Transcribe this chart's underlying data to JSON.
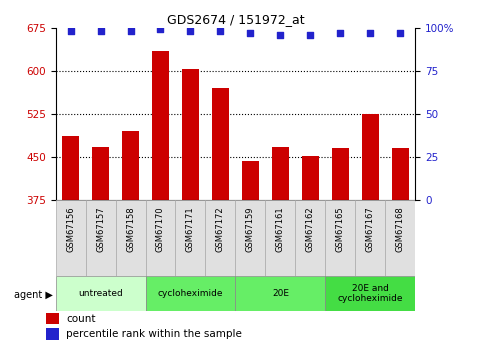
{
  "title": "GDS2674 / 151972_at",
  "samples": [
    "GSM67156",
    "GSM67157",
    "GSM67158",
    "GSM67170",
    "GSM67171",
    "GSM67172",
    "GSM67159",
    "GSM67161",
    "GSM67162",
    "GSM67165",
    "GSM67167",
    "GSM67168"
  ],
  "counts": [
    487,
    468,
    495,
    635,
    603,
    570,
    443,
    468,
    452,
    465,
    525,
    465
  ],
  "percentiles": [
    98,
    98,
    98,
    99,
    98,
    98,
    97,
    96,
    96,
    97,
    97,
    97
  ],
  "bar_color": "#cc0000",
  "dot_color": "#2222cc",
  "ylim_left": [
    375,
    675
  ],
  "ylim_right": [
    0,
    100
  ],
  "yticks_left": [
    375,
    450,
    525,
    600,
    675
  ],
  "yticks_right": [
    0,
    25,
    50,
    75,
    100
  ],
  "grid_values": [
    450,
    525,
    600
  ],
  "groups": [
    {
      "label": "untreated",
      "start": 0,
      "end": 3,
      "color": "#ccffcc"
    },
    {
      "label": "cycloheximide",
      "start": 3,
      "end": 6,
      "color": "#66ee66"
    },
    {
      "label": "20E",
      "start": 6,
      "end": 9,
      "color": "#66ee66"
    },
    {
      "label": "20E and\ncycloheximide",
      "start": 9,
      "end": 12,
      "color": "#44dd44"
    }
  ],
  "agent_label": "agent",
  "legend_count_label": "count",
  "legend_percentile_label": "percentile rank within the sample",
  "tick_label_color_left": "#cc0000",
  "tick_label_color_right": "#2222cc",
  "sample_bg_color": "#e0e0e0",
  "sample_border_color": "#aaaaaa"
}
